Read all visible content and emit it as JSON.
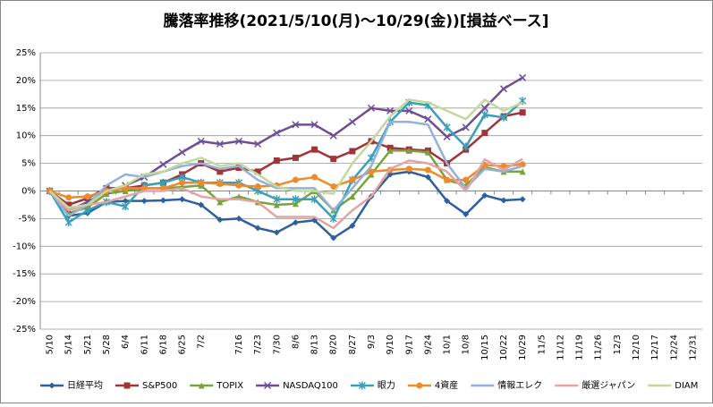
{
  "chart_data": {
    "type": "line",
    "title": "騰落率推移(2021/5/10(月)〜10/29(金))[損益ベース]",
    "categories": [
      "5/10",
      "5/14",
      "5/21",
      "5/28",
      "6/4",
      "6/11",
      "6/18",
      "6/25",
      "7/2",
      null,
      "7/16",
      "7/23",
      "7/30",
      "8/6",
      "8/13",
      "8/20",
      "8/27",
      "9/3",
      "9/10",
      "9/17",
      "9/24",
      "10/1",
      "10/8",
      "10/15",
      "10/22",
      "10/29",
      "11/5",
      "11/12",
      "11/19",
      "11/26",
      "12/3",
      "12/10",
      "12/17",
      "12/24",
      "12/31"
    ],
    "series": [
      {
        "name": "日経平均",
        "color": "#2e5f9e",
        "marker": "diamond",
        "values": [
          0,
          -4.5,
          -4,
          -2,
          -1.8,
          -1.8,
          -1.7,
          -1.5,
          -2.5,
          -5.2,
          -5,
          -6.7,
          -7.5,
          -5.7,
          -5.3,
          -8.5,
          -6.3,
          -1,
          3,
          3.5,
          2.5,
          -1.8,
          -4.2,
          -0.8,
          -1.7,
          -1.5,
          null,
          null,
          null,
          null,
          null,
          null,
          null,
          null,
          null
        ]
      },
      {
        "name": "S&P500",
        "color": "#a0343b",
        "marker": "square",
        "values": [
          0,
          -2.5,
          -1.3,
          0.5,
          0.5,
          1,
          1.5,
          3,
          5,
          3.5,
          4.2,
          3.5,
          5.5,
          6,
          7.5,
          5.8,
          7.2,
          9,
          7.8,
          7.5,
          7.3,
          5,
          7.5,
          10.5,
          13.5,
          14.2,
          null,
          null,
          null,
          null,
          null,
          null,
          null,
          null,
          null
        ]
      },
      {
        "name": "TOPIX",
        "color": "#7aa23c",
        "marker": "triangle",
        "values": [
          0,
          -4,
          -3,
          -0.5,
          0,
          0.5,
          0.5,
          0.7,
          1,
          -2,
          -1,
          -2,
          -2.5,
          -2.3,
          0,
          -3.5,
          -1,
          3,
          7.3,
          7.3,
          7,
          2,
          1,
          4.3,
          3.5,
          3.5,
          null,
          null,
          null,
          null,
          null,
          null,
          null,
          null,
          null
        ]
      },
      {
        "name": "NASDAQ100",
        "color": "#6e4f95",
        "marker": "x",
        "values": [
          0,
          -3.5,
          -2,
          0,
          1,
          2.5,
          4.8,
          7,
          9,
          8.5,
          9,
          8.5,
          10.5,
          12,
          12,
          10,
          12.5,
          15,
          14.5,
          14.5,
          13,
          9.8,
          11.5,
          15,
          18.5,
          20.5,
          null,
          null,
          null,
          null,
          null,
          null,
          null,
          null,
          null
        ]
      },
      {
        "name": "眼力",
        "color": "#3aa0b8",
        "marker": "asterisk",
        "values": [
          0,
          -5.7,
          -3.5,
          -2,
          -2.8,
          1,
          1.5,
          2.5,
          1.5,
          1.5,
          1.5,
          0,
          -1.5,
          -1.5,
          -1.5,
          -5,
          2,
          6,
          12.5,
          16,
          15.5,
          11.5,
          8,
          13.8,
          13.3,
          16.3,
          null,
          null,
          null,
          null,
          null,
          null,
          null,
          null,
          null
        ]
      },
      {
        "name": "4資産",
        "color": "#ef8a2a",
        "marker": "circle",
        "values": [
          0,
          -1.2,
          -1,
          0,
          0.5,
          0.5,
          0.5,
          1.5,
          1.5,
          1.3,
          1,
          0.8,
          1,
          2,
          2.5,
          0.8,
          2,
          3.5,
          3.8,
          4,
          3.8,
          2,
          2,
          4.7,
          4.5,
          4.8,
          null,
          null,
          null,
          null,
          null,
          null,
          null,
          null,
          null
        ]
      },
      {
        "name": "情報エレク",
        "color": "#94b0db",
        "marker": "none",
        "values": [
          0,
          -4.5,
          -2.5,
          1,
          3,
          2.5,
          3.5,
          4.5,
          5,
          4,
          4.5,
          2,
          0.5,
          0.5,
          0.5,
          -3.5,
          0.5,
          4.5,
          12.5,
          12.5,
          12,
          5,
          0.5,
          4,
          3.5,
          4.5,
          null,
          null,
          null,
          null,
          null,
          null,
          null,
          null,
          null
        ]
      },
      {
        "name": "厳選ジャパン",
        "color": "#e6a3a3",
        "marker": "none",
        "values": [
          0,
          -3.5,
          -2.5,
          -2,
          -1,
          0,
          0,
          0.5,
          -1,
          -1.5,
          -1.5,
          -2,
          -4.7,
          -4.7,
          -4.7,
          -6.7,
          -3.5,
          -1,
          4,
          5.5,
          5,
          3.5,
          0,
          5.7,
          3.8,
          5.8,
          null,
          null,
          null,
          null,
          null,
          null,
          null,
          null,
          null
        ]
      },
      {
        "name": "DIAM",
        "color": "#c3d89d",
        "marker": "none",
        "values": [
          0,
          -3,
          -2.5,
          0,
          1,
          3,
          3.5,
          5,
          6,
          4.5,
          5,
          3,
          0.8,
          0,
          0,
          -0.5,
          5,
          9,
          13.5,
          16.5,
          16,
          14.5,
          13,
          16.5,
          14.5,
          16,
          null,
          null,
          null,
          null,
          null,
          null,
          null,
          null,
          null
        ]
      }
    ],
    "ylim": [
      -25,
      25
    ],
    "yticks": [
      {
        "value": -25,
        "label": "-25%"
      },
      {
        "value": -20,
        "label": "-20%"
      },
      {
        "value": -15,
        "label": "-15%"
      },
      {
        "value": -10,
        "label": "-10%"
      },
      {
        "value": -5,
        "label": "-5%"
      },
      {
        "value": 0,
        "label": "0%"
      },
      {
        "value": 5,
        "label": "5%"
      },
      {
        "value": 10,
        "label": "10%"
      },
      {
        "value": 15,
        "label": "15%"
      },
      {
        "value": 20,
        "label": "20%"
      },
      {
        "value": 25,
        "label": "25%"
      }
    ],
    "grid": true,
    "legend": "bottom"
  }
}
